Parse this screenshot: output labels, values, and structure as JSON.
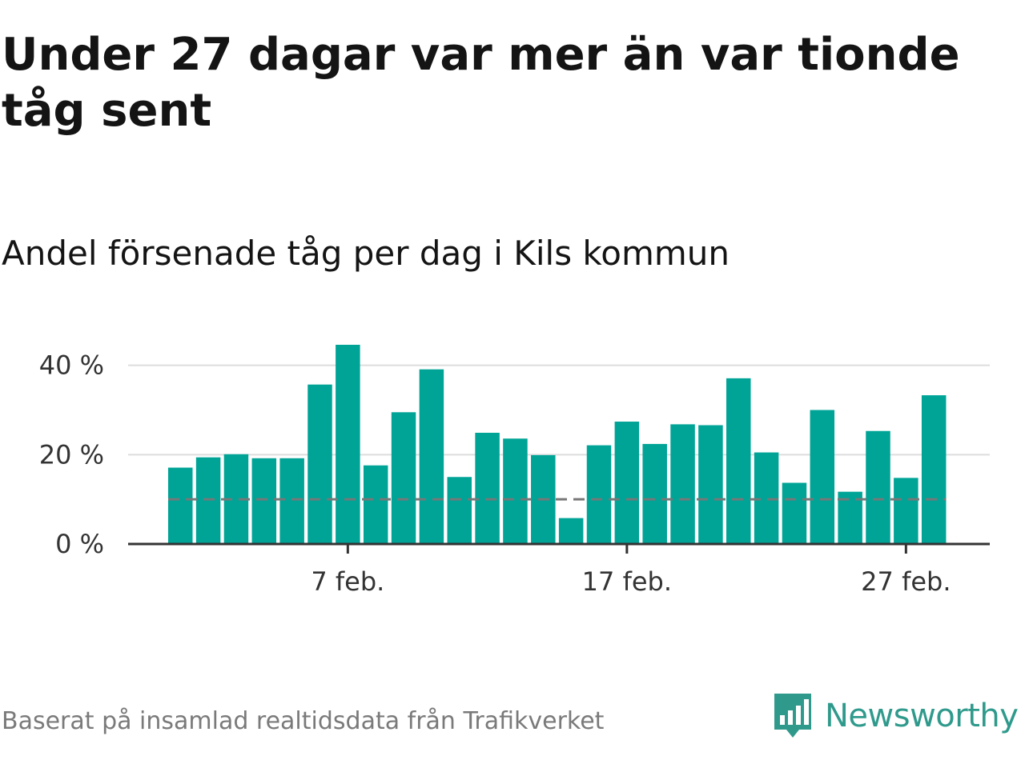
{
  "header": {
    "title": "Under 27 dagar var mer än var tionde tåg sent",
    "subtitle": "Andel försenade tåg per dag i Kils kommun"
  },
  "footer": {
    "source": "Baserat på insamlad realtidsdata från Trafikverket",
    "brand": "Newsworthy",
    "brand_icon": "newsworthy-logo-icon"
  },
  "colors": {
    "bar": "#00a497",
    "grid": "#dddddd",
    "axis": "#333333",
    "reference_line": "#777777",
    "brand": "#2f9a8c"
  },
  "chart_data": {
    "type": "bar",
    "title": "Andel försenade tåg per dag i Kils kommun",
    "xlabel": "",
    "ylabel": "",
    "x_unit": "date",
    "categories": [
      "1 feb.",
      "2 feb.",
      "3 feb.",
      "4 feb.",
      "5 feb.",
      "6 feb.",
      "7 feb.",
      "8 feb.",
      "9 feb.",
      "10 feb.",
      "11 feb.",
      "12 feb.",
      "13 feb.",
      "14 feb.",
      "15 feb.",
      "16 feb.",
      "17 feb.",
      "18 feb.",
      "19 feb.",
      "20 feb.",
      "21 feb.",
      "22 feb.",
      "23 feb.",
      "24 feb.",
      "25 feb.",
      "26 feb.",
      "27 feb.",
      "28 feb."
    ],
    "values": [
      17.1,
      19.4,
      20.1,
      19.2,
      19.2,
      35.7,
      44.6,
      17.6,
      29.5,
      39.1,
      15.0,
      24.9,
      23.6,
      19.9,
      5.8,
      22.1,
      27.4,
      22.4,
      26.8,
      26.6,
      37.1,
      20.5,
      13.7,
      30.0,
      11.7,
      25.3,
      14.8,
      33.3
    ],
    "ylim": [
      0,
      48
    ],
    "yticks": [
      0,
      20,
      40
    ],
    "ytick_labels": [
      "0 %",
      "20 %",
      "40 %"
    ],
    "xticks": [
      "7 feb.",
      "17 feb.",
      "27 feb."
    ],
    "reference_line": {
      "value": 10,
      "style": "dashed"
    },
    "grid": true,
    "legend": "none"
  }
}
